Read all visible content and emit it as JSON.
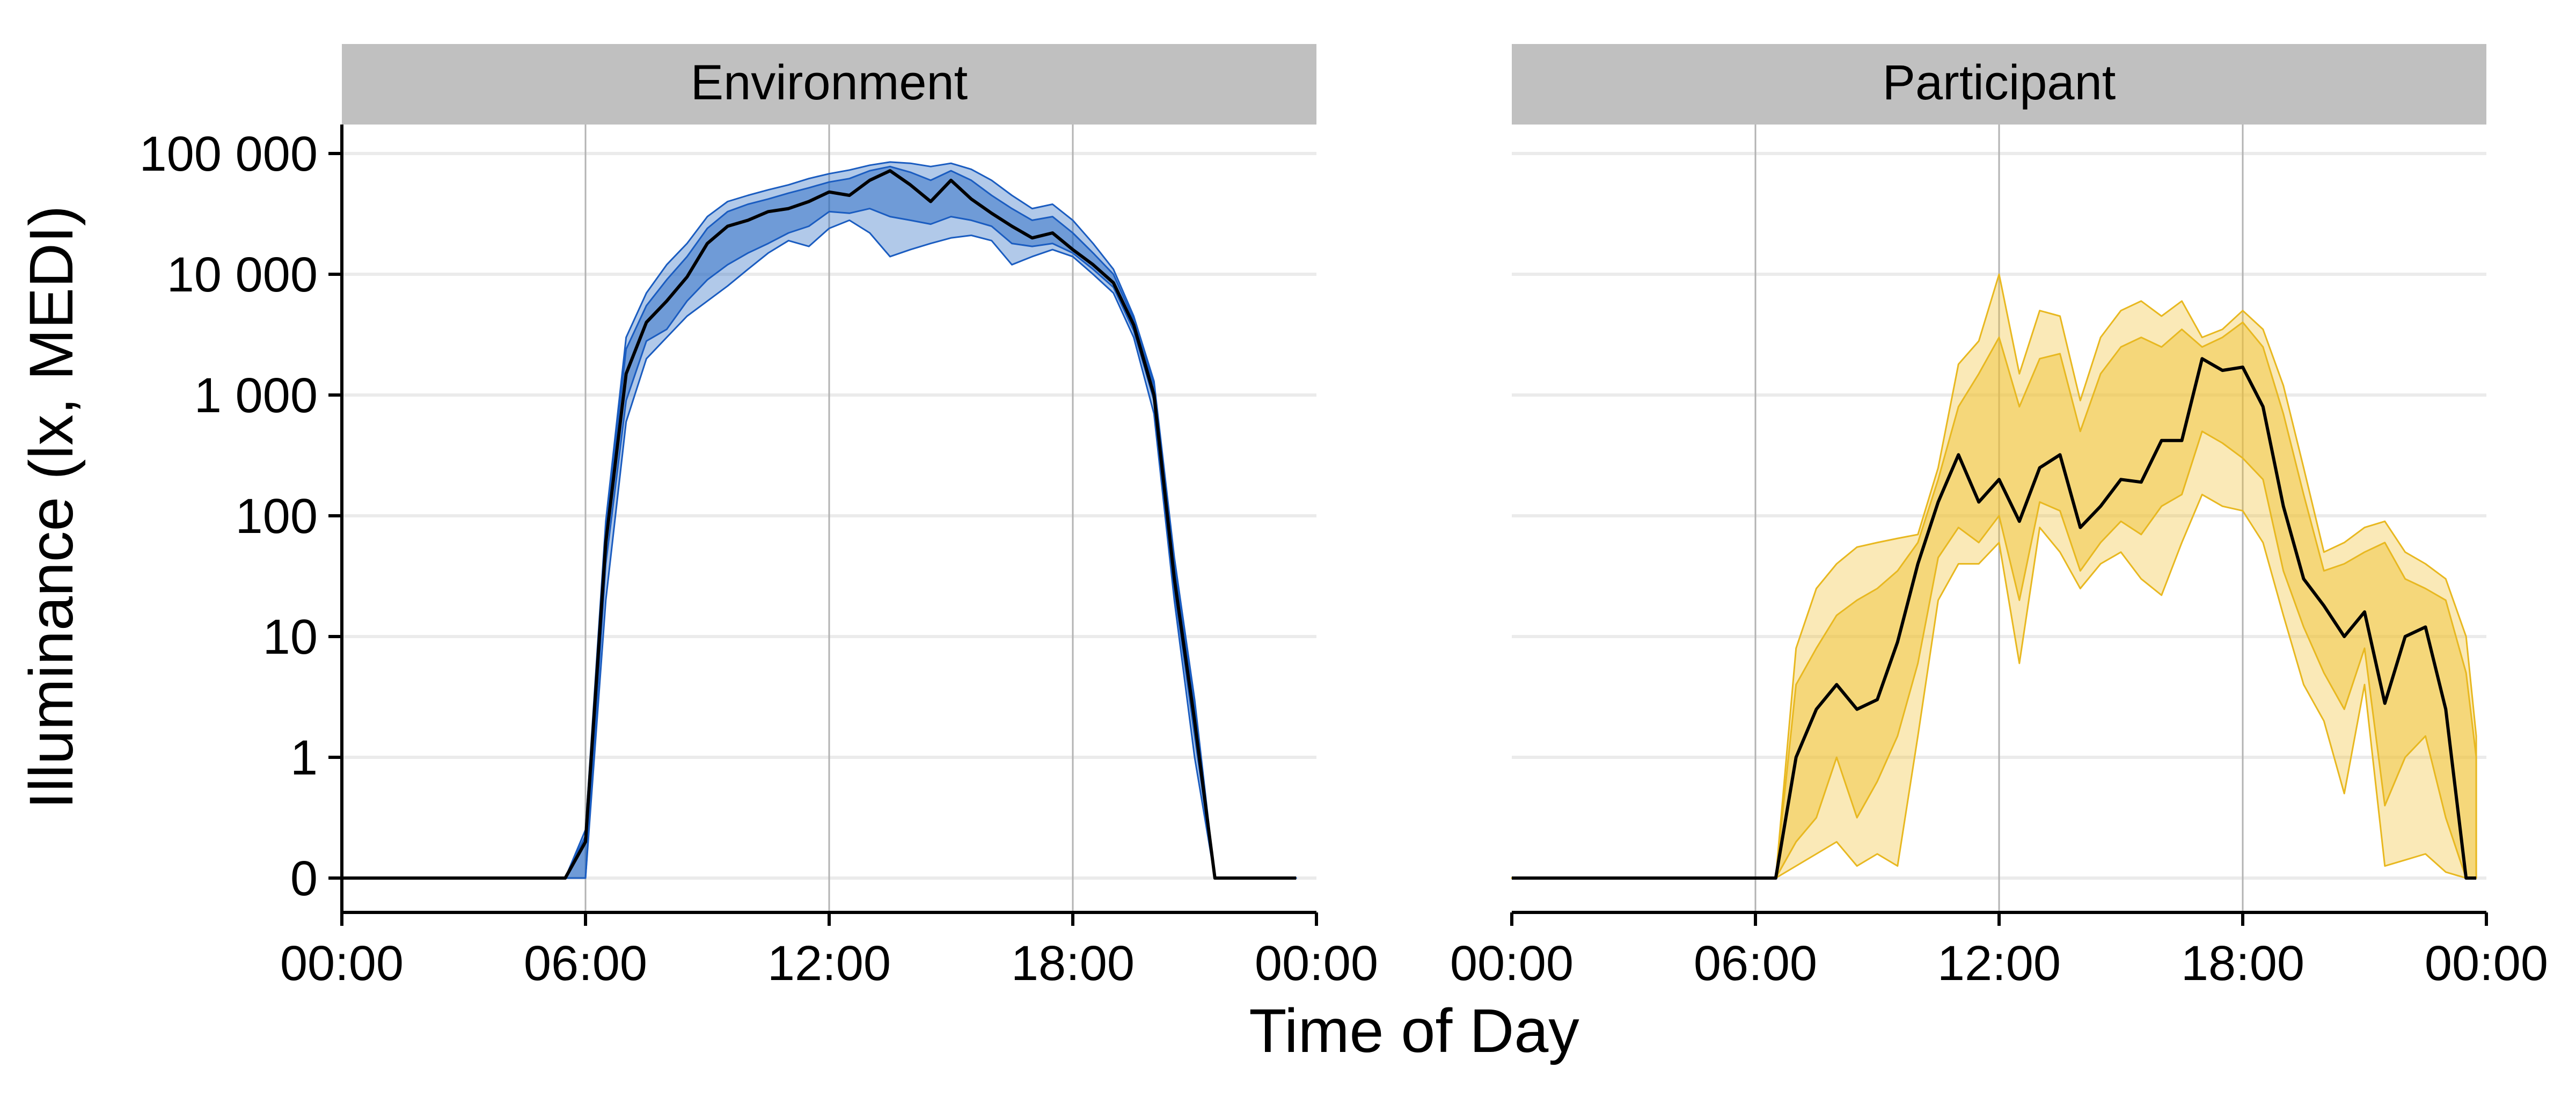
{
  "chart_data": {
    "type": "area",
    "facets": [
      "Environment",
      "Participant"
    ],
    "xlabel": "Time of Day",
    "ylabel": "Illuminance (lx, MEDI)",
    "x_ticks": [
      "00:00",
      "06:00",
      "12:00",
      "18:00",
      "00:00"
    ],
    "y_ticks": [
      "0",
      "1",
      "10",
      "100",
      "1 000",
      "10 000",
      "100 000"
    ],
    "y_scale": "symlog",
    "xlim": [
      "00:00",
      "24:00"
    ],
    "ylim": [
      0,
      100000
    ],
    "grid": true,
    "legend": "none",
    "colors": {
      "Environment": {
        "fill": "#1f64c0",
        "stroke": "#1a5cc0"
      },
      "Participant": {
        "fill": "#f0c030",
        "stroke": "#e8b820"
      },
      "median_line": "#000000",
      "strip_background": "#c0c0c0",
      "gridline_major": "#b3b3b3",
      "gridline_minor": "#ebebeb"
    },
    "panels": [
      {
        "name": "Environment",
        "x": [
          "00:00",
          "05:30",
          "06:00",
          "06:30",
          "07:00",
          "07:30",
          "08:00",
          "08:30",
          "09:00",
          "09:30",
          "10:00",
          "10:30",
          "11:00",
          "11:30",
          "12:00",
          "12:30",
          "13:00",
          "13:30",
          "14:00",
          "14:30",
          "15:00",
          "15:30",
          "16:00",
          "16:30",
          "17:00",
          "17:30",
          "18:00",
          "18:30",
          "19:00",
          "19:30",
          "20:00",
          "20:30",
          "21:00",
          "21:30",
          "22:00",
          "22:30",
          "23:30"
        ],
        "median": [
          0,
          0,
          0.3,
          60,
          1500,
          4000,
          6000,
          9500,
          18000,
          25000,
          28000,
          33000,
          35000,
          40000,
          48000,
          45000,
          60000,
          72000,
          55000,
          40000,
          60000,
          42000,
          32000,
          25000,
          20000,
          22000,
          16000,
          12000,
          8500,
          3800,
          1000,
          30,
          2,
          0,
          0,
          0,
          0
        ],
        "bands": [
          {
            "lower": [
              0,
              0,
              0,
              20,
              600,
              2000,
              3000,
              4500,
              6000,
              8000,
              11000,
              15000,
              19000,
              17000,
              24000,
              28000,
              22000,
              14000,
              16000,
              18000,
              20000,
              21000,
              19000,
              12000,
              14000,
              16000,
              14000,
              10000,
              7000,
              3000,
              700,
              20,
              1,
              0,
              0,
              0,
              0
            ],
            "upper": [
              0,
              0,
              0.4,
              90,
              3000,
              7000,
              12000,
              18000,
              30000,
              40000,
              45000,
              50000,
              55000,
              62000,
              68000,
              73000,
              80000,
              85000,
              83000,
              78000,
              83000,
              74000,
              60000,
              45000,
              35000,
              38000,
              28000,
              18000,
              11000,
              4500,
              1300,
              45,
              3,
              0,
              0,
              0,
              0
            ]
          },
          {
            "lower": [
              0,
              0,
              0,
              40,
              900,
              2800,
              3500,
              6000,
              9000,
              12000,
              15000,
              18000,
              22000,
              25000,
              33000,
              32000,
              35000,
              30000,
              28000,
              26000,
              30000,
              28000,
              25000,
              18000,
              17000,
              18000,
              15000,
              11000,
              7800,
              3400,
              900,
              25,
              1.5,
              0,
              0,
              0,
              0
            ],
            "upper": [
              0,
              0,
              0.35,
              80,
              2400,
              5500,
              9000,
              14000,
              24000,
              33000,
              38000,
              42000,
              47000,
              52000,
              58000,
              62000,
              72000,
              78000,
              70000,
              60000,
              72000,
              60000,
              45000,
              35000,
              28000,
              30000,
              22000,
              15000,
              10000,
              4200,
              1200,
              40,
              2.5,
              0,
              0,
              0,
              0
            ]
          }
        ]
      },
      {
        "name": "Participant",
        "x": [
          "00:00",
          "06:30",
          "07:00",
          "07:30",
          "08:00",
          "08:30",
          "09:00",
          "09:30",
          "10:00",
          "10:30",
          "11:00",
          "11:30",
          "12:00",
          "12:30",
          "13:00",
          "13:30",
          "14:00",
          "14:30",
          "15:00",
          "15:30",
          "16:00",
          "16:30",
          "17:00",
          "17:30",
          "18:00",
          "18:30",
          "19:00",
          "19:30",
          "20:00",
          "20:30",
          "21:00",
          "21:30",
          "22:00",
          "22:30",
          "23:00",
          "23:30",
          "23:45"
        ],
        "median": [
          0,
          0,
          1,
          2.5,
          4,
          2.5,
          3,
          9,
          40,
          130,
          320,
          130,
          200,
          90,
          250,
          320,
          80,
          120,
          200,
          190,
          420,
          420,
          2000,
          1600,
          1700,
          800,
          120,
          30,
          18,
          10,
          16,
          2.8,
          10,
          12,
          2.5,
          0,
          0
        ],
        "bands": [
          {
            "lower": [
              0,
              0,
              0.1,
              0.2,
              0.3,
              0.1,
              0.2,
              0.1,
              1.5,
              20,
              40,
              40,
              60,
              6,
              80,
              50,
              25,
              40,
              50,
              30,
              22,
              60,
              150,
              120,
              110,
              60,
              15,
              4,
              2,
              0.7,
              4,
              0.1,
              0.15,
              0.2,
              0.05,
              0,
              0
            ],
            "upper": [
              0,
              0,
              8,
              25,
              40,
              55,
              60,
              65,
              70,
              250,
              1800,
              2800,
              10000,
              1500,
              5000,
              4500,
              900,
              3000,
              5000,
              6000,
              4500,
              6000,
              3000,
              3500,
              5000,
              3500,
              1200,
              250,
              50,
              60,
              80,
              90,
              50,
              40,
              30,
              10,
              1.5
            ]
          },
          {
            "lower": [
              0,
              0,
              0.3,
              0.5,
              1,
              0.5,
              0.8,
              1.5,
              6,
              45,
              80,
              60,
              100,
              20,
              130,
              110,
              35,
              60,
              90,
              70,
              120,
              150,
              500,
              400,
              300,
              200,
              35,
              12,
              5,
              2.5,
              8,
              0.6,
              1,
              1.5,
              0.5,
              0,
              0
            ],
            "upper": [
              0,
              0,
              4,
              8,
              15,
              20,
              25,
              35,
              60,
              200,
              800,
              1500,
              3000,
              800,
              2000,
              2200,
              500,
              1500,
              2500,
              3000,
              2500,
              3500,
              2500,
              3000,
              4000,
              2500,
              700,
              150,
              35,
              40,
              50,
              60,
              30,
              25,
              20,
              5,
              1
            ]
          }
        ]
      }
    ]
  }
}
